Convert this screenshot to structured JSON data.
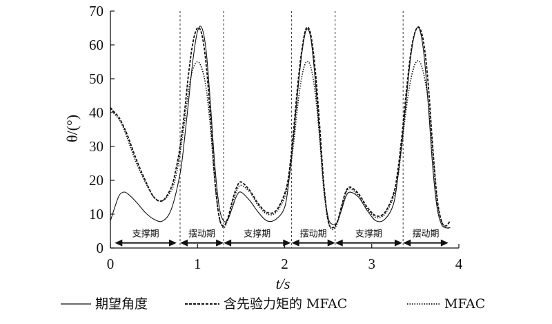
{
  "chart_data": {
    "type": "line",
    "xlabel": "t/s",
    "ylabel": "θ/(°)",
    "xlim": [
      0,
      4
    ],
    "ylim": [
      0,
      70
    ],
    "xticks": [
      0,
      1,
      2,
      3,
      4
    ],
    "yticks": [
      0,
      10,
      20,
      30,
      40,
      50,
      60,
      70
    ],
    "grid": false,
    "legend_position": "bottom",
    "phase_boundaries": [
      0.8,
      1.3,
      2.08,
      2.58,
      3.36
    ],
    "phases": [
      {
        "label": "支撑期",
        "start": 0.05,
        "end": 0.76
      },
      {
        "label": "摆动期",
        "start": 0.8,
        "end": 1.3
      },
      {
        "label": "支撑期",
        "start": 1.3,
        "end": 2.07
      },
      {
        "label": "摆动期",
        "start": 2.08,
        "end": 2.58
      },
      {
        "label": "支撑期",
        "start": 2.58,
        "end": 3.35
      },
      {
        "label": "摆动期",
        "start": 3.36,
        "end": 3.88
      }
    ],
    "series": [
      {
        "name": "期望角度",
        "style": "solid",
        "x": [
          0,
          0.05,
          0.1,
          0.15,
          0.2,
          0.3,
          0.4,
          0.5,
          0.6,
          0.7,
          0.8,
          0.85,
          0.9,
          0.95,
          1.0,
          1.05,
          1.1,
          1.15,
          1.2,
          1.25,
          1.3,
          1.35,
          1.4,
          1.45,
          1.5,
          1.6,
          1.7,
          1.8,
          1.9,
          2.0,
          2.05,
          2.1,
          2.15,
          2.2,
          2.25,
          2.3,
          2.35,
          2.4,
          2.45,
          2.5,
          2.55,
          2.6,
          2.65,
          2.7,
          2.75,
          2.85,
          2.95,
          3.05,
          3.15,
          3.25,
          3.3,
          3.35,
          3.4,
          3.45,
          3.5,
          3.55,
          3.6,
          3.65,
          3.7,
          3.75,
          3.8,
          3.85,
          3.9
        ],
        "y": [
          8,
          12,
          15.5,
          16.5,
          16,
          13.5,
          10.5,
          8.5,
          8,
          11.5,
          22,
          32,
          44,
          56,
          64,
          65,
          58,
          42,
          24,
          12,
          8,
          8.5,
          12,
          15.5,
          16.5,
          14,
          10.5,
          8,
          8.5,
          12,
          20,
          32,
          46,
          58,
          64.5,
          62,
          50,
          34,
          18,
          9,
          7,
          7.5,
          11,
          15,
          16.5,
          15,
          11,
          8,
          8.5,
          13,
          21,
          32,
          45,
          57,
          64,
          64.5,
          57,
          42,
          24,
          12,
          7,
          6,
          6
        ]
      },
      {
        "name": "含先验力矩的 MFAC",
        "style": "dashed",
        "x": [
          0,
          0.05,
          0.1,
          0.15,
          0.2,
          0.3,
          0.4,
          0.5,
          0.6,
          0.7,
          0.75,
          0.8,
          0.85,
          0.9,
          0.95,
          1.0,
          1.05,
          1.1,
          1.15,
          1.2,
          1.25,
          1.3,
          1.35,
          1.4,
          1.45,
          1.5,
          1.6,
          1.7,
          1.8,
          1.9,
          2.0,
          2.05,
          2.1,
          2.15,
          2.2,
          2.25,
          2.3,
          2.35,
          2.4,
          2.45,
          2.5,
          2.55,
          2.6,
          2.65,
          2.7,
          2.75,
          2.85,
          2.95,
          3.05,
          3.15,
          3.25,
          3.3,
          3.35,
          3.4,
          3.45,
          3.5,
          3.55,
          3.6,
          3.65,
          3.7,
          3.75,
          3.8,
          3.85,
          3.9
        ],
        "y": [
          41.5,
          40,
          38.5,
          36,
          33,
          26,
          20,
          15,
          14,
          18,
          23,
          30,
          40,
          52,
          61,
          65,
          63,
          54,
          38,
          20,
          9,
          6.5,
          9,
          14,
          18,
          19.5,
          17,
          13,
          10.5,
          11,
          16,
          22,
          34,
          48,
          59,
          65,
          63,
          53,
          37,
          19,
          8,
          6,
          7.5,
          12,
          16.5,
          18,
          16,
          12,
          9.5,
          10.5,
          16,
          23,
          34,
          47,
          58,
          64,
          65,
          60,
          48,
          30,
          15,
          8,
          6.5,
          8
        ]
      },
      {
        "name": "MFAC",
        "style": "dotted",
        "x": [
          0,
          0.05,
          0.1,
          0.15,
          0.2,
          0.3,
          0.4,
          0.5,
          0.6,
          0.7,
          0.75,
          0.8,
          0.85,
          0.9,
          0.95,
          1.0,
          1.05,
          1.1,
          1.15,
          1.2,
          1.25,
          1.3,
          1.35,
          1.4,
          1.45,
          1.5,
          1.6,
          1.7,
          1.8,
          1.9,
          2.0,
          2.05,
          2.1,
          2.15,
          2.2,
          2.25,
          2.3,
          2.35,
          2.4,
          2.45,
          2.5,
          2.55,
          2.6,
          2.65,
          2.7,
          2.75,
          2.85,
          2.95,
          3.05,
          3.15,
          3.25,
          3.3,
          3.35,
          3.4,
          3.45,
          3.5,
          3.55,
          3.6,
          3.65,
          3.7,
          3.75,
          3.8,
          3.85,
          3.9
        ],
        "y": [
          41,
          39.5,
          38,
          35.5,
          32,
          25,
          19.5,
          15,
          14,
          17,
          21,
          28,
          37,
          47,
          53,
          55,
          53,
          47,
          35,
          19,
          9,
          6,
          8.5,
          13,
          17,
          18.5,
          16.5,
          12.5,
          10,
          10.5,
          15,
          21,
          30,
          42,
          51,
          55,
          53.5,
          46,
          33,
          17,
          8,
          5.5,
          7,
          11.5,
          16,
          17.5,
          15.5,
          11.5,
          9,
          10,
          15,
          21,
          31,
          42,
          50,
          54.5,
          55,
          51,
          43,
          28,
          14,
          8,
          6,
          6
        ]
      }
    ]
  }
}
